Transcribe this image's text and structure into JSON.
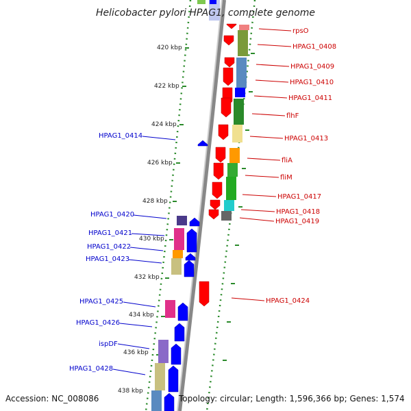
{
  "title": "Helicobacter pylori HPAG1, complete genome",
  "footer": {
    "accession": "Accession: NC_008086",
    "topology": "Topology: circular; Length: 1,596,366 bp; Genes: 1,574"
  },
  "colors": {
    "forward_arrow": "#ff0000",
    "reverse_arrow": "#0000ff",
    "forward_label": "#cc0000",
    "reverse_label": "#0000cc",
    "dotted_ring": "#2a8a2a",
    "backbone": "#999999"
  },
  "ticks": [
    "420 kbp",
    "422 kbp",
    "424 kbp",
    "426 kbp",
    "428 kbp",
    "430 kbp",
    "432 kbp",
    "434 kbp",
    "436 kbp",
    "438 kbp"
  ],
  "forward_genes": [
    "rpsO",
    "HPAG1_0408",
    "HPAG1_0409",
    "HPAG1_0410",
    "HPAG1_0411",
    "flhF",
    "HPAG1_0413",
    "fliA",
    "fliM",
    "HPAG1_0417",
    "HPAG1_0418",
    "HPAG1_0419",
    "HPAG1_0424"
  ],
  "reverse_genes": [
    "HPAG1_0414",
    "HPAG1_0420",
    "HPAG1_0421",
    "HPAG1_0422",
    "HPAG1_0423",
    "HPAG1_0425",
    "HPAG1_0426",
    "ispDF",
    "HPAG1_0428"
  ]
}
